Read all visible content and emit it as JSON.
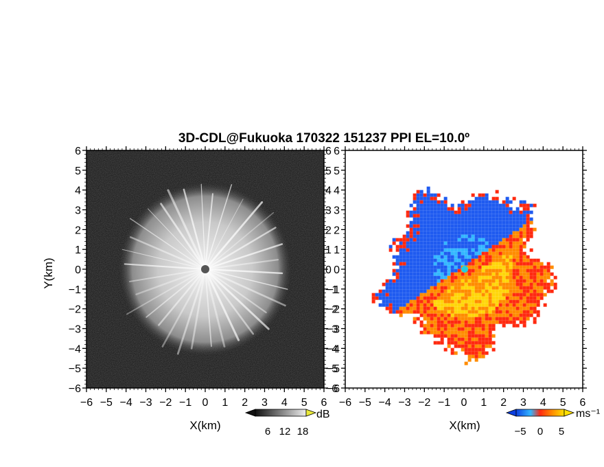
{
  "title": "3D-CDL@Fukuoka 170322 151237 PPI EL=10.0º",
  "colors": {
    "background_left": "#1e1e1e",
    "echo_white": "#f2f2f2",
    "vel_blue": "#1f5bf0",
    "vel_light_blue": "#33b7ff",
    "vel_cyan": "#22cfe0",
    "vel_red": "#ff2a10",
    "vel_orange": "#ff8c00",
    "vel_yellow": "#ffd60a",
    "center_marker": "#555555"
  },
  "chart_data": [
    {
      "type": "heatmap",
      "name": "reflectivity-ppi",
      "xlabel": "X(km)",
      "ylabel": "Y(km)",
      "xlim": [
        -6,
        6
      ],
      "ylim": [
        -6,
        6
      ],
      "x_ticks": [
        "−6",
        "−5",
        "−4",
        "−3",
        "−2",
        "−1",
        "0",
        "1",
        "2",
        "3",
        "4",
        "5",
        "6"
      ],
      "y_ticks": [
        "6",
        "5",
        "4",
        "3",
        "2",
        "1",
        "0",
        "−1",
        "−2",
        "−3",
        "−4",
        "−5",
        "−6"
      ],
      "echo_radius_km": 4.2,
      "colorbar": {
        "unit": "dB",
        "ticks": [
          "6",
          "12",
          "18"
        ]
      }
    },
    {
      "type": "heatmap",
      "name": "doppler-velocity-ppi",
      "xlabel": "X(km)",
      "xlim": [
        -6,
        6
      ],
      "ylim": [
        -6,
        6
      ],
      "x_ticks": [
        "−6",
        "−5",
        "−4",
        "−3",
        "−2",
        "−1",
        "0",
        "1",
        "2",
        "3",
        "4",
        "5",
        "6"
      ],
      "y_ticks": [
        "6",
        "5",
        "4",
        "3",
        "2",
        "1",
        "0",
        "−1",
        "−2",
        "−3",
        "−4",
        "−5",
        "−6"
      ],
      "echo_radius_km": 4.0,
      "colorbar": {
        "unit": "ms⁻¹",
        "ticks": [
          "−5",
          "0",
          "5"
        ]
      }
    }
  ]
}
